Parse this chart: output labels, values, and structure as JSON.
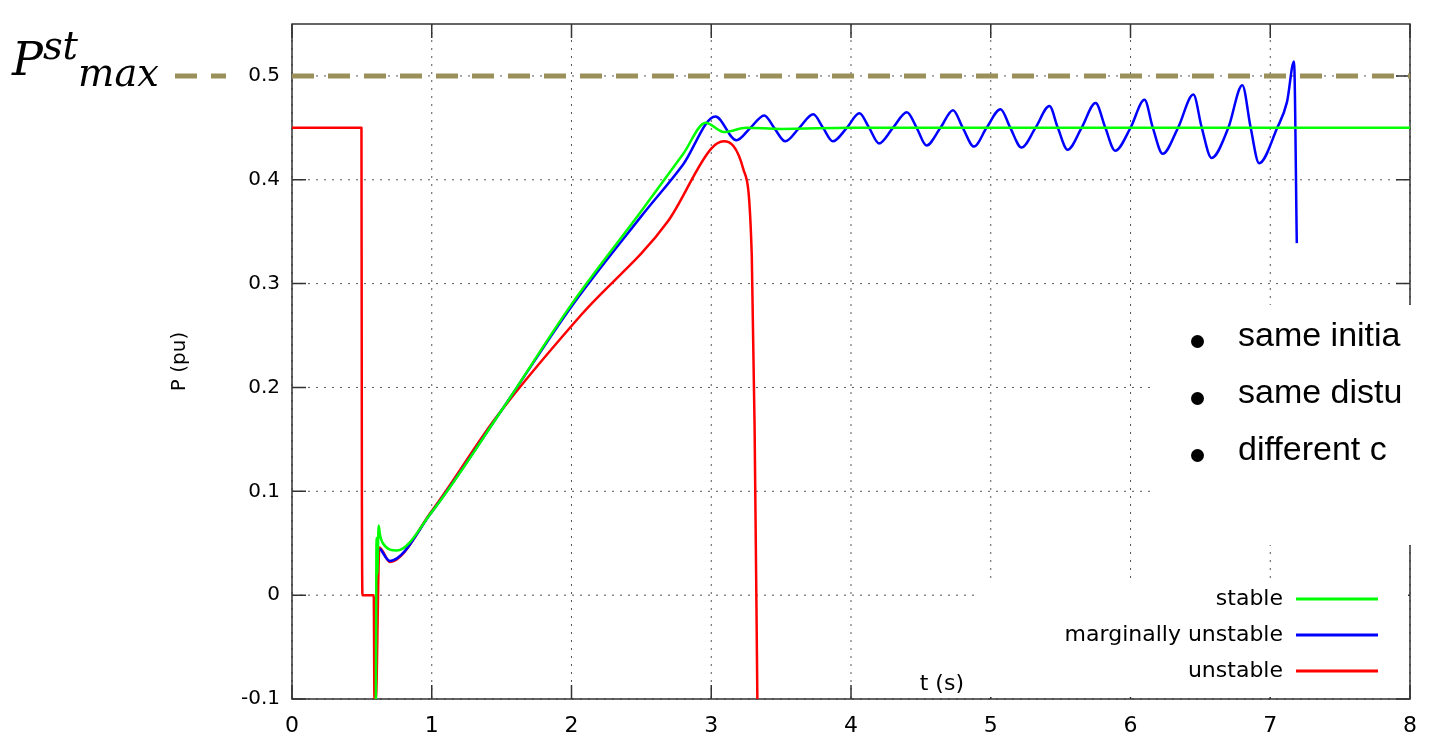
{
  "chart_data": {
    "type": "line",
    "xlabel": "t (s)",
    "ylabel": "P (pu)",
    "xlim": [
      0,
      8
    ],
    "xticks": [
      0,
      1,
      2,
      3,
      4,
      5,
      6,
      7,
      8
    ],
    "ylim": [
      -0.1,
      0.55
    ],
    "yticks": [
      -0.1,
      0,
      0.1,
      0.2,
      0.3,
      0.4,
      0.5
    ],
    "grid": true,
    "legend": "bottom right",
    "marker": "none",
    "series": [
      {
        "name": "stable",
        "color": "#00ff00",
        "x": [
          0.6,
          0.605,
          0.61,
          0.62,
          0.63,
          0.65,
          0.75,
          1.0,
          1.5,
          2.0,
          2.5,
          2.8,
          2.96,
          3.09,
          3.25,
          3.5,
          4,
          5,
          6,
          7,
          8
        ],
        "values": [
          -0.1,
          0.055,
          0.02,
          0.067,
          0.058,
          0.05,
          0.043,
          0.08,
          0.178,
          0.28,
          0.37,
          0.425,
          0.455,
          0.446,
          0.45,
          0.449,
          0.45,
          0.45,
          0.45,
          0.45,
          0.45
        ]
      },
      {
        "name": "marginally unstable",
        "color": "#0000ff",
        "x": [
          0.63,
          0.7,
          1.0,
          1.5,
          2.0,
          2.5,
          2.8,
          3.03,
          3.18,
          3.28,
          3.38,
          3.45,
          3.53,
          3.63,
          3.73,
          3.8,
          3.87,
          3.97,
          4.06,
          4.13,
          4.2,
          4.3,
          4.4,
          4.47,
          4.54,
          4.64,
          4.73,
          4.8,
          4.88,
          4.97,
          5.07,
          5.14,
          5.22,
          5.32,
          5.42,
          5.48,
          5.55,
          5.65,
          5.75,
          5.82,
          5.89,
          6.0,
          6.1,
          6.16,
          6.23,
          6.34,
          6.45,
          6.51,
          6.58,
          6.7,
          6.8,
          6.86,
          6.92,
          7.05,
          7.12,
          7.17,
          7.19
        ],
        "values": [
          0.045,
          0.033,
          0.08,
          0.178,
          0.278,
          0.365,
          0.415,
          0.461,
          0.438,
          0.45,
          0.462,
          0.45,
          0.437,
          0.45,
          0.463,
          0.45,
          0.437,
          0.45,
          0.464,
          0.45,
          0.435,
          0.45,
          0.465,
          0.45,
          0.433,
          0.45,
          0.467,
          0.45,
          0.432,
          0.45,
          0.468,
          0.45,
          0.431,
          0.45,
          0.471,
          0.45,
          0.429,
          0.45,
          0.474,
          0.45,
          0.428,
          0.45,
          0.477,
          0.45,
          0.425,
          0.45,
          0.482,
          0.45,
          0.421,
          0.45,
          0.491,
          0.45,
          0.416,
          0.45,
          0.475,
          0.514,
          0.339
        ]
      },
      {
        "name": "unstable",
        "color": "#ff0000",
        "x": [
          0,
          0.497,
          0.5,
          0.505,
          0.585,
          0.59,
          0.6,
          0.625,
          0.7,
          1.0,
          1.46,
          2.07,
          2.69,
          3.0,
          3.09,
          3.23,
          3.29,
          3.31,
          3.33
        ],
        "values": [
          0.45,
          0.45,
          0.1,
          0.0,
          0.0,
          -0.1,
          -0.1,
          0.046,
          0.032,
          0.081,
          0.171,
          0.27,
          0.36,
          0.43,
          0.437,
          0.41,
          0.327,
          0.164,
          -0.1
        ]
      }
    ],
    "ref_lines": [
      {
        "axis": "y",
        "value": 0.5,
        "label": "P$^{st}$$_{max}$",
        "color": "#9b8f5a",
        "line_style": "dashed"
      }
    ],
    "annotations": [
      "same initia",
      "same distu",
      "different c"
    ]
  }
}
